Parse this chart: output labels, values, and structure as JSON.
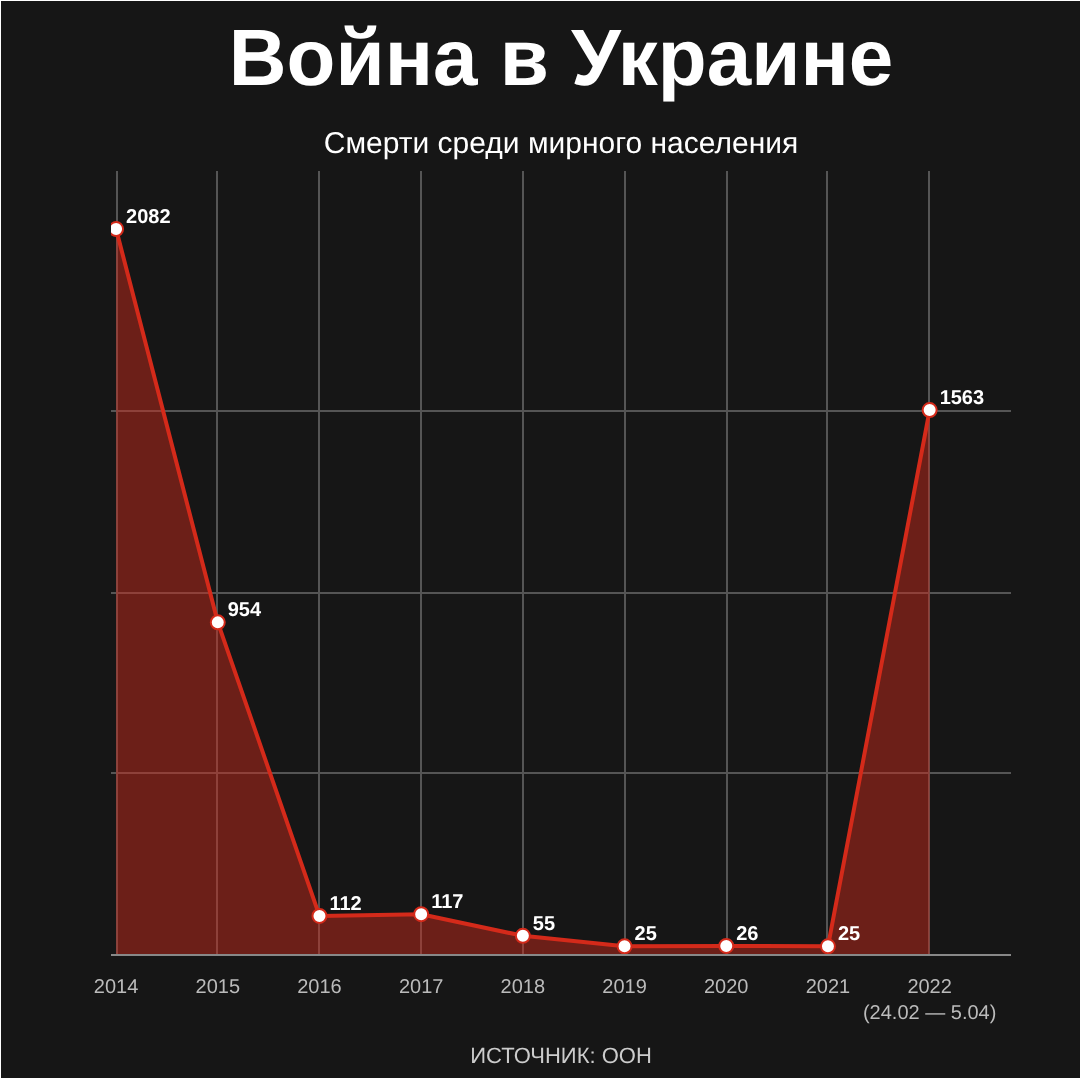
{
  "chart_data": {
    "type": "area",
    "title": "Война в Украине",
    "subtitle": "Смерти среди мирного населения",
    "categories": [
      "2014",
      "2015",
      "2016",
      "2017",
      "2018",
      "2019",
      "2020",
      "2021",
      "2022\n(24.02 — 5.04)"
    ],
    "series": [
      {
        "color": "#d42a1a",
        "values": [
          2082,
          954,
          112,
          117,
          55,
          25,
          26,
          25,
          1563
        ]
      }
    ],
    "data_labels": true,
    "marker": "circle",
    "line_style": "solid",
    "grid": true,
    "annotations": [
      "ИСТОЧНИК: ООН"
    ]
  }
}
